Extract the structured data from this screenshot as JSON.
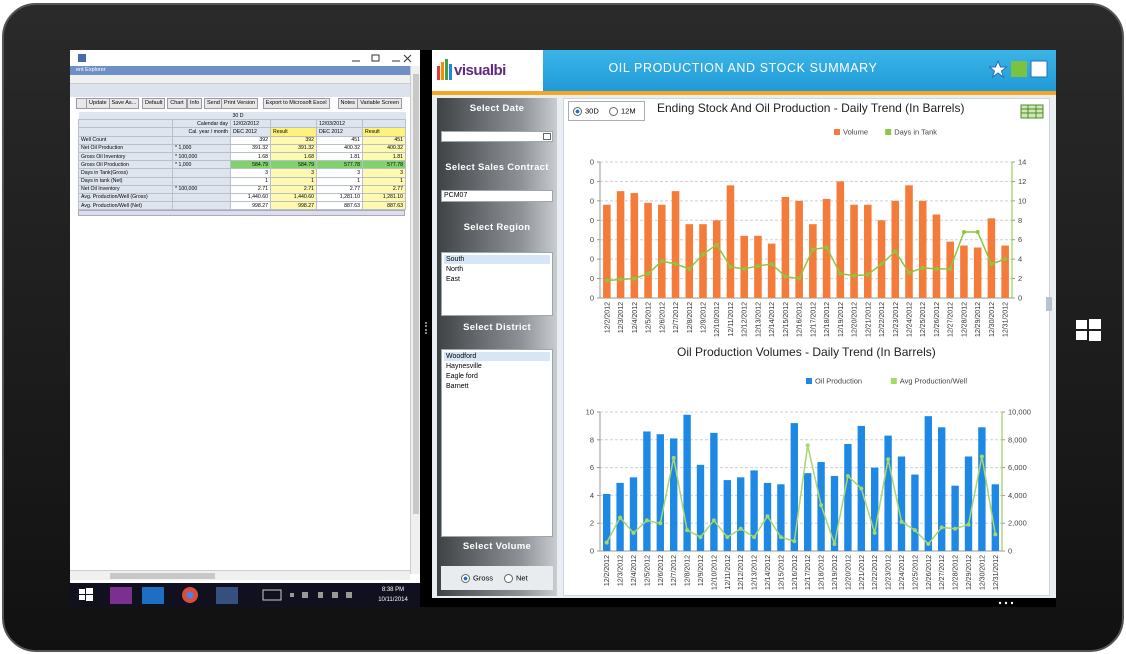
{
  "browser": {
    "window_title": "ent Explorer",
    "toolbar": [
      "Update",
      "Save As...",
      "Default",
      "Chart",
      "Info",
      "Send",
      "Print Version",
      "Export to Microsoft Excel",
      "Notes",
      "Variable Screen"
    ],
    "table": {
      "period": "30 D",
      "calendar_row": {
        "label": "Calendar day",
        "dates": [
          "12/02/2012",
          "12/03/2012"
        ]
      },
      "month_row": {
        "label": "Cal. year / month",
        "cols": [
          "DEC 2012",
          "Result",
          "DEC 2012",
          "Result"
        ]
      },
      "rows": [
        {
          "name": "Well Count",
          "values": [
            "392",
            "392",
            "451",
            "451"
          ]
        },
        {
          "name": "Net Oil Production",
          "unit": "* 1,000",
          "values": [
            "391.32",
            "391.32",
            "400.32",
            "400.32"
          ]
        },
        {
          "name": "Gross Oil Inventory",
          "unit": "* 100,000",
          "values": [
            "1.68",
            "1.68",
            "1.81",
            "1.81"
          ]
        },
        {
          "name": "Gross Oil Production",
          "unit": "* 1,000",
          "values": [
            "584.79",
            "584.79",
            "577.78",
            "577.78"
          ]
        },
        {
          "name": "Days in Tank(Gross)",
          "values": [
            "3",
            "3",
            "3",
            "3"
          ]
        },
        {
          "name": "Days in tank (Net)",
          "values": [
            "1",
            "1",
            "1",
            "1"
          ]
        },
        {
          "name": "Net Oil Inventory",
          "unit": "* 100,000",
          "values": [
            "2.71",
            "2.71",
            "2.77",
            "2.77"
          ]
        },
        {
          "name": "Avg. Production/Well (Gross)",
          "values": [
            "1,440.60",
            "1,440.60",
            "1,281.10",
            "1,281.10"
          ]
        },
        {
          "name": "Avg. Production/Well (Net)",
          "values": [
            "998.27",
            "998.27",
            "887.63",
            "887.63"
          ]
        }
      ]
    }
  },
  "taskbar": {
    "time": "8:38 PM",
    "date": "10/11/2014"
  },
  "dashboard": {
    "logo": "visualbi",
    "title": "OIL PRODUCTION AND STOCK SUMMARY",
    "range_options": [
      "30D",
      "12M"
    ],
    "filters": {
      "date": {
        "label": "Select Date"
      },
      "sales_contract": {
        "label": "Select Sales Contract",
        "value": "PCM07"
      },
      "region": {
        "label": "Select Region",
        "options": [
          "South",
          "North",
          "East"
        ]
      },
      "district": {
        "label": "Select District",
        "options": [
          "Woodford",
          "Haynesville",
          "Eagle ford",
          "Barnett"
        ]
      },
      "volume": {
        "label": "Select Volume",
        "options": [
          "Gross",
          "Net"
        ]
      }
    }
  },
  "chart_data": [
    {
      "type": "combo",
      "title": "Ending Stock And Oil Production - Daily Trend (In Barrels)",
      "categories": [
        "12/2/2012",
        "12/3/2012",
        "12/4/2012",
        "12/5/2012",
        "12/6/2012",
        "12/7/2012",
        "12/8/2012",
        "12/9/2012",
        "12/10/2012",
        "12/11/2012",
        "12/12/2012",
        "12/13/2012",
        "12/14/2012",
        "12/15/2012",
        "12/16/2012",
        "12/17/2012",
        "12/18/2012",
        "12/19/2012",
        "12/20/2012",
        "12/21/2012",
        "12/22/2012",
        "12/23/2012",
        "12/24/2012",
        "12/25/2012",
        "12/26/2012",
        "12/27/2012",
        "12/28/2012",
        "12/29/2012",
        "12/30/2012",
        "12/31/2012"
      ],
      "series": [
        {
          "name": "Volume",
          "kind": "bar",
          "color": "#f47b3a",
          "values": [
            4.8,
            5.5,
            5.4,
            4.9,
            4.8,
            5.5,
            3.8,
            3.8,
            4.0,
            5.8,
            3.2,
            3.2,
            2.8,
            5.2,
            5.0,
            3.8,
            5.1,
            6.0,
            4.8,
            4.8,
            4.0,
            5.0,
            5.8,
            5.0,
            4.3,
            2.9,
            2.7,
            2.6,
            4.1,
            2.7
          ]
        },
        {
          "name": "Days in Tank",
          "kind": "line",
          "axis": "y2",
          "color": "#8dc63f",
          "values": [
            1.8,
            1.9,
            2.0,
            2.5,
            3.8,
            3.5,
            3.0,
            4.5,
            5.5,
            3.2,
            3.0,
            3.3,
            3.5,
            2.2,
            2.0,
            5.0,
            5.2,
            2.5,
            2.3,
            2.4,
            3.5,
            4.8,
            2.6,
            3.1,
            3.0,
            3.0,
            6.8,
            6.8,
            3.5,
            4.0
          ]
        }
      ],
      "ylim": [
        0,
        7
      ],
      "yticks": [
        {
          "value": 0,
          "label": "0"
        },
        {
          "value": 1,
          "label": "0"
        },
        {
          "value": 2,
          "label": "0"
        },
        {
          "value": 3,
          "label": "0"
        },
        {
          "value": 4,
          "label": "0"
        },
        {
          "value": 5,
          "label": "0"
        },
        {
          "value": 6,
          "label": "0"
        },
        {
          "value": 7,
          "label": "0"
        }
      ],
      "y2lim": [
        0,
        14
      ],
      "y2ticks": [
        0,
        2,
        4,
        6,
        8,
        10,
        12,
        14
      ],
      "grid": true
    },
    {
      "type": "combo",
      "title": "Oil Production Volumes - Daily Trend (In Barrels)",
      "categories": [
        "12/2/2012",
        "12/3/2012",
        "12/4/2012",
        "12/5/2012",
        "12/6/2012",
        "12/7/2012",
        "12/8/2012",
        "12/9/2012",
        "12/10/2012",
        "12/11/2012",
        "12/12/2012",
        "12/13/2012",
        "12/14/2012",
        "12/15/2012",
        "12/16/2012",
        "12/17/2012",
        "12/18/2012",
        "12/19/2012",
        "12/20/2012",
        "12/21/2012",
        "12/22/2012",
        "12/23/2012",
        "12/24/2012",
        "12/25/2012",
        "12/26/2012",
        "12/27/2012",
        "12/28/2012",
        "12/29/2012",
        "12/30/2012",
        "12/31/2012"
      ],
      "series": [
        {
          "name": "Oil Production",
          "kind": "bar",
          "color": "#1e88e5",
          "values": [
            4.1,
            4.9,
            5.3,
            8.6,
            8.4,
            8.1,
            9.8,
            6.2,
            8.5,
            5.1,
            5.3,
            5.8,
            4.9,
            4.8,
            9.2,
            5.6,
            6.4,
            5.4,
            7.7,
            9.0,
            6.0,
            8.3,
            6.8,
            5.5,
            9.7,
            8.9,
            4.7,
            6.8,
            8.9,
            4.8
          ]
        },
        {
          "name": "Avg Production/Well",
          "kind": "line",
          "axis": "y2",
          "color": "#a6d86a",
          "values": [
            600,
            2400,
            1300,
            2200,
            2000,
            6700,
            1500,
            1000,
            2200,
            1000,
            1600,
            1000,
            2500,
            1000,
            700,
            7600,
            3300,
            500,
            5400,
            4500,
            1300,
            6600,
            2100,
            1500,
            500,
            1700,
            1600,
            1900,
            6800,
            1200
          ]
        }
      ],
      "ylim": [
        0,
        10
      ],
      "yticks": [
        0,
        2,
        4,
        6,
        8,
        10
      ],
      "y2lim": [
        0,
        10000
      ],
      "y2ticks": [
        0,
        {
          "value": 2000,
          "label": "2,000"
        },
        {
          "value": 4000,
          "label": "4,000"
        },
        {
          "value": 6000,
          "label": "6,000"
        },
        {
          "value": 8000,
          "label": "8,000"
        },
        {
          "value": 10000,
          "label": "10,000"
        }
      ],
      "grid": true
    }
  ]
}
